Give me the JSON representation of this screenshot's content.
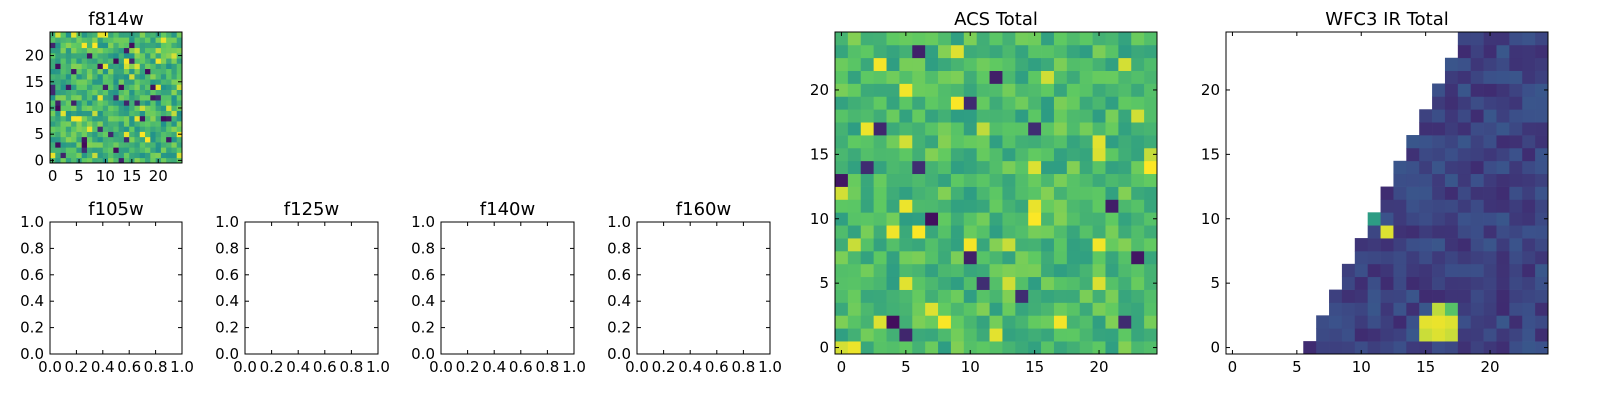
{
  "figure": {
    "title": ""
  },
  "colormap": {
    "name": "viridis",
    "stops": [
      "#440154",
      "#3b528b",
      "#21918c",
      "#5ec962",
      "#fde725"
    ]
  },
  "chart_data": [
    {
      "id": "f814w",
      "type": "heatmap",
      "title": "f814w",
      "grid_size": 25,
      "xlim": [
        -0.5,
        24.5
      ],
      "ylim": [
        -0.5,
        24.5
      ],
      "xticks": [
        0,
        5,
        10,
        15,
        20
      ],
      "xticklabels": [
        "0",
        "5",
        "10",
        "15",
        "20"
      ],
      "yticks": [
        0,
        5,
        10,
        15,
        20
      ],
      "yticklabels": [
        "0",
        "5",
        "10",
        "15",
        "20"
      ],
      "value_note": "noise-like field; values mostly mid-high viridis (0.45-0.85) with sparse dark and bright pixels",
      "generator": {
        "kind": "noise",
        "seed": 814,
        "base": 0.66,
        "spread": 0.16,
        "dark_rate": 0.05,
        "bright_rate": 0.07
      }
    },
    {
      "id": "f105w",
      "type": "empty",
      "title": "f105w",
      "xlim": [
        0,
        1
      ],
      "ylim": [
        0,
        1
      ],
      "xticks": [
        0,
        0.2,
        0.4,
        0.6,
        0.8,
        1.0
      ],
      "xticklabels": [
        "0.0",
        "0.2",
        "0.4",
        "0.6",
        "0.8",
        "1.0"
      ],
      "yticks": [
        0,
        0.2,
        0.4,
        0.6,
        0.8,
        1.0
      ],
      "yticklabels": [
        "0.0",
        "0.2",
        "0.4",
        "0.6",
        "0.8",
        "1.0"
      ]
    },
    {
      "id": "f125w",
      "type": "empty",
      "title": "f125w",
      "xlim": [
        0,
        1
      ],
      "ylim": [
        0,
        1
      ],
      "xticks": [
        0,
        0.2,
        0.4,
        0.6,
        0.8,
        1.0
      ],
      "xticklabels": [
        "0.0",
        "0.2",
        "0.4",
        "0.6",
        "0.8",
        "1.0"
      ],
      "yticks": [
        0,
        0.2,
        0.4,
        0.6,
        0.8,
        1.0
      ],
      "yticklabels": [
        "0.0",
        "0.2",
        "0.4",
        "0.6",
        "0.8",
        "1.0"
      ]
    },
    {
      "id": "f140w",
      "type": "empty",
      "title": "f140w",
      "xlim": [
        0,
        1
      ],
      "ylim": [
        0,
        1
      ],
      "xticks": [
        0,
        0.2,
        0.4,
        0.6,
        0.8,
        1.0
      ],
      "xticklabels": [
        "0.0",
        "0.2",
        "0.4",
        "0.6",
        "0.8",
        "1.0"
      ],
      "yticks": [
        0,
        0.2,
        0.4,
        0.6,
        0.8,
        1.0
      ],
      "yticklabels": [
        "0.0",
        "0.2",
        "0.4",
        "0.6",
        "0.8",
        "1.0"
      ]
    },
    {
      "id": "f160w",
      "type": "empty",
      "title": "f160w",
      "xlim": [
        0,
        1
      ],
      "ylim": [
        0,
        1
      ],
      "xticks": [
        0,
        0.2,
        0.4,
        0.6,
        0.8,
        1.0
      ],
      "xticklabels": [
        "0.0",
        "0.2",
        "0.4",
        "0.6",
        "0.8",
        "1.0"
      ],
      "yticks": [
        0,
        0.2,
        0.4,
        0.6,
        0.8,
        1.0
      ],
      "yticklabels": [
        "0.0",
        "0.2",
        "0.4",
        "0.6",
        "0.8",
        "1.0"
      ]
    },
    {
      "id": "acs_total",
      "type": "heatmap",
      "title": "ACS Total",
      "grid_size": 25,
      "xlim": [
        -0.5,
        24.5
      ],
      "ylim": [
        -0.5,
        24.5
      ],
      "xticks": [
        0,
        5,
        10,
        15,
        20
      ],
      "xticklabels": [
        "0",
        "5",
        "10",
        "15",
        "20"
      ],
      "yticks": [
        0,
        5,
        10,
        15,
        20
      ],
      "yticklabels": [
        "0",
        "5",
        "10",
        "15",
        "20"
      ],
      "value_note": "noise-like field; mostly green/yellow-green with a few dark purple and bright yellow pixels",
      "generator": {
        "kind": "noise",
        "seed": 2025,
        "base": 0.68,
        "spread": 0.13,
        "dark_rate": 0.03,
        "bright_rate": 0.06
      }
    },
    {
      "id": "wfc3_ir_total",
      "type": "heatmap",
      "title": "WFC3 IR Total",
      "grid_size": 25,
      "xlim": [
        -0.5,
        24.5
      ],
      "ylim": [
        -0.5,
        24.5
      ],
      "xticks": [
        0,
        5,
        10,
        15,
        20
      ],
      "xticklabels": [
        "0",
        "5",
        "10",
        "15",
        "20"
      ],
      "yticks": [
        0,
        5,
        10,
        15,
        20
      ],
      "yticklabels": [
        "0",
        "5",
        "10",
        "15",
        "20"
      ],
      "value_note": "values only in the lower-right triangle (left of boundary is empty/NaN); mostly dark purple with a teal pixel and bright yellow pixels",
      "generator": {
        "kind": "triangle",
        "seed": 1600,
        "base": 0.2,
        "spread": 0.07,
        "left_edge": {
          "row_start": 0,
          "col_at_row_start": 6,
          "row_end": 24,
          "col_at_row_end": 18
        },
        "highlights": [
          {
            "col": 11,
            "row": 10,
            "value": 0.55
          },
          {
            "col": 12,
            "row": 9,
            "value": 0.95
          },
          {
            "col": 15,
            "row": 1,
            "value": 0.92
          },
          {
            "col": 16,
            "row": 1,
            "value": 0.95
          },
          {
            "col": 17,
            "row": 1,
            "value": 0.92
          },
          {
            "col": 15,
            "row": 2,
            "value": 0.96
          },
          {
            "col": 16,
            "row": 2,
            "value": 0.97
          },
          {
            "col": 17,
            "row": 2,
            "value": 0.95
          },
          {
            "col": 16,
            "row": 3,
            "value": 0.9
          },
          {
            "col": 17,
            "row": 3,
            "value": 0.72
          }
        ]
      }
    }
  ]
}
